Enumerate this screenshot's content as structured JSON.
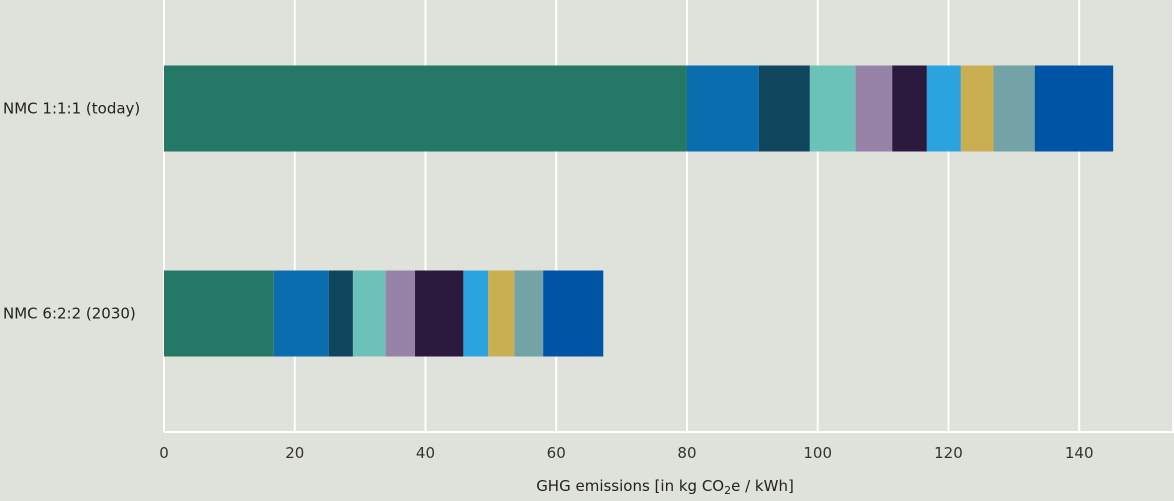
{
  "chart_data": {
    "type": "bar",
    "orientation": "horizontal",
    "stacked": true,
    "categories": [
      "NMC 1:1:1 (today)",
      "NMC 6:2:2 (2030)"
    ],
    "series": [
      {
        "color": "#267866",
        "values": [
          80.0,
          16.8
        ]
      },
      {
        "color": "#0a6eae",
        "values": [
          11.0,
          8.4
        ]
      },
      {
        "color": "#10455e",
        "values": [
          7.8,
          3.7
        ]
      },
      {
        "color": "#6cc2b9",
        "values": [
          7.0,
          5.0
        ]
      },
      {
        "color": "#9883a8",
        "values": [
          5.6,
          4.5
        ]
      },
      {
        "color": "#2b1a3d",
        "values": [
          5.3,
          7.4
        ]
      },
      {
        "color": "#2ba3df",
        "values": [
          5.2,
          3.8
        ]
      },
      {
        "color": "#c9ae52",
        "values": [
          5.0,
          4.0
        ]
      },
      {
        "color": "#73a3a6",
        "values": [
          6.3,
          4.4
        ]
      },
      {
        "color": "#0054a6",
        "values": [
          12.0,
          9.2
        ]
      }
    ],
    "xlim": [
      0,
      150
    ],
    "xticks": [
      0,
      20,
      40,
      60,
      80,
      100,
      120,
      140
    ],
    "xlabel_pre": "GHG emissions [in kg CO",
    "xlabel_sub": "2",
    "xlabel_post": "e / kWh]",
    "grid": true,
    "legend": "none"
  }
}
